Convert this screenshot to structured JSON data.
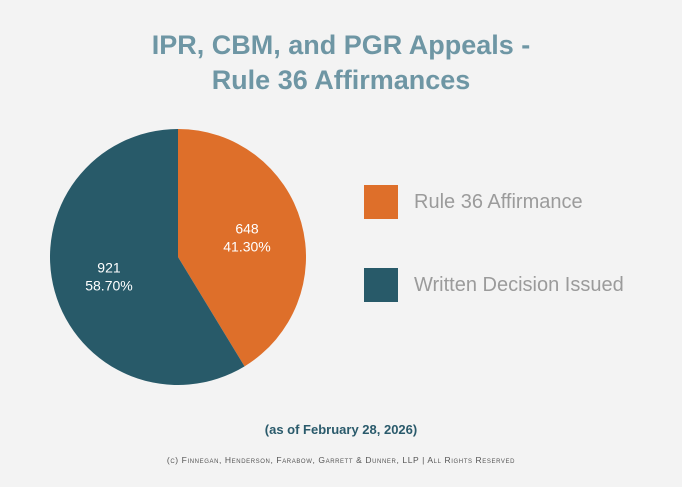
{
  "chart_data": {
    "type": "pie",
    "title": [
      "IPR, CBM, and PGR Appeals -",
      "Rule 36 Affirmances"
    ],
    "slices": [
      {
        "label": "Rule 36 Affirmance",
        "value": 648,
        "percent": "41.30%",
        "color": "#de6f2a"
      },
      {
        "label": "Written Decision Issued",
        "value": 921,
        "percent": "58.70%",
        "color": "#285a69"
      }
    ],
    "legend_position": "right"
  },
  "footer": {
    "as_of": "(as of February 28, 2026)",
    "copyright": "(c) Finnegan, Henderson, Farabow, Garrett & Dunner, LLP | All Rights Reserved"
  }
}
